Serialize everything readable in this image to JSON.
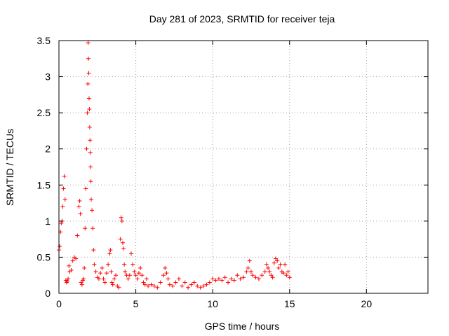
{
  "chart_data": {
    "type": "scatter",
    "title": "Day 281 of 2023, SRMTID for receiver teja",
    "xlabel": "GPS time / hours",
    "ylabel": "SRMTID / TECUs",
    "xlim": [
      0,
      24
    ],
    "ylim": [
      0,
      3.5
    ],
    "x_ticks": [
      0,
      5,
      10,
      15,
      20
    ],
    "x_tick_labels": [
      "0",
      "5",
      "10",
      "15",
      "20"
    ],
    "y_ticks": [
      0,
      0.5,
      1,
      1.5,
      2,
      2.5,
      3,
      3.5
    ],
    "y_tick_labels": [
      "0",
      "0.5",
      "1",
      "1.5",
      "2",
      "2.5",
      "3",
      "3.5"
    ],
    "grid": true,
    "marker": "+",
    "series": [
      {
        "name": "SRMTID",
        "color": "#ff0000",
        "x": [
          0.0,
          0.05,
          0.1,
          0.15,
          0.2,
          0.25,
          0.3,
          0.35,
          0.4,
          0.45,
          0.5,
          0.55,
          0.6,
          0.65,
          0.7,
          0.8,
          0.9,
          1.0,
          1.1,
          1.2,
          1.3,
          1.35,
          1.4,
          1.45,
          1.5,
          1.55,
          1.6,
          1.65,
          1.7,
          1.75,
          1.8,
          1.85,
          1.88,
          1.9,
          1.92,
          1.94,
          1.96,
          1.98,
          2.0,
          2.02,
          2.04,
          2.06,
          2.08,
          2.1,
          2.15,
          2.2,
          2.25,
          2.3,
          2.4,
          2.5,
          2.6,
          2.7,
          2.8,
          2.9,
          3.0,
          3.1,
          3.2,
          3.3,
          3.35,
          3.4,
          3.45,
          3.5,
          3.6,
          3.7,
          3.8,
          3.9,
          4.0,
          4.05,
          4.1,
          4.15,
          4.2,
          4.25,
          4.3,
          4.4,
          4.5,
          4.6,
          4.7,
          4.8,
          4.9,
          5.0,
          5.1,
          5.2,
          5.3,
          5.4,
          5.5,
          5.6,
          5.7,
          5.8,
          6.0,
          6.2,
          6.4,
          6.6,
          6.8,
          6.9,
          7.0,
          7.1,
          7.2,
          7.4,
          7.6,
          7.8,
          8.0,
          8.2,
          8.4,
          8.6,
          8.8,
          9.0,
          9.2,
          9.4,
          9.6,
          9.8,
          10.0,
          10.2,
          10.4,
          10.6,
          10.8,
          11.0,
          11.2,
          11.4,
          11.6,
          11.8,
          12.0,
          12.2,
          12.3,
          12.4,
          12.5,
          12.6,
          12.8,
          13.0,
          13.2,
          13.4,
          13.5,
          13.6,
          13.7,
          13.8,
          13.9,
          14.0,
          14.1,
          14.2,
          14.3,
          14.4,
          14.5,
          14.6,
          14.7,
          14.8,
          14.9,
          15.0
        ],
        "values": [
          0.6,
          0.65,
          0.85,
          0.97,
          1.0,
          1.2,
          1.45,
          1.62,
          1.3,
          0.18,
          0.15,
          0.17,
          0.2,
          0.38,
          0.3,
          0.32,
          0.45,
          0.5,
          0.48,
          0.8,
          1.2,
          1.28,
          1.1,
          0.15,
          0.12,
          0.18,
          0.2,
          0.35,
          0.9,
          1.45,
          2.0,
          2.5,
          2.9,
          3.47,
          3.25,
          3.05,
          2.7,
          2.55,
          2.3,
          2.12,
          1.95,
          1.75,
          1.55,
          1.3,
          1.15,
          0.9,
          0.6,
          0.4,
          0.3,
          0.22,
          0.2,
          0.28,
          0.35,
          0.2,
          0.15,
          0.28,
          0.4,
          0.55,
          0.6,
          0.3,
          0.15,
          0.12,
          0.2,
          0.25,
          0.1,
          0.08,
          0.75,
          1.05,
          1.0,
          0.7,
          0.62,
          0.4,
          0.3,
          0.25,
          0.2,
          0.25,
          0.55,
          0.4,
          0.3,
          0.25,
          0.2,
          0.28,
          0.35,
          0.25,
          0.15,
          0.12,
          0.2,
          0.1,
          0.12,
          0.1,
          0.08,
          0.15,
          0.25,
          0.35,
          0.28,
          0.2,
          0.12,
          0.1,
          0.15,
          0.2,
          0.1,
          0.15,
          0.08,
          0.12,
          0.15,
          0.1,
          0.08,
          0.1,
          0.12,
          0.15,
          0.2,
          0.18,
          0.2,
          0.18,
          0.22,
          0.15,
          0.2,
          0.18,
          0.25,
          0.2,
          0.22,
          0.3,
          0.35,
          0.45,
          0.3,
          0.25,
          0.22,
          0.2,
          0.25,
          0.3,
          0.4,
          0.35,
          0.3,
          0.25,
          0.22,
          0.42,
          0.48,
          0.45,
          0.35,
          0.4,
          0.3,
          0.28,
          0.4,
          0.25,
          0.3,
          0.22
        ]
      }
    ]
  }
}
